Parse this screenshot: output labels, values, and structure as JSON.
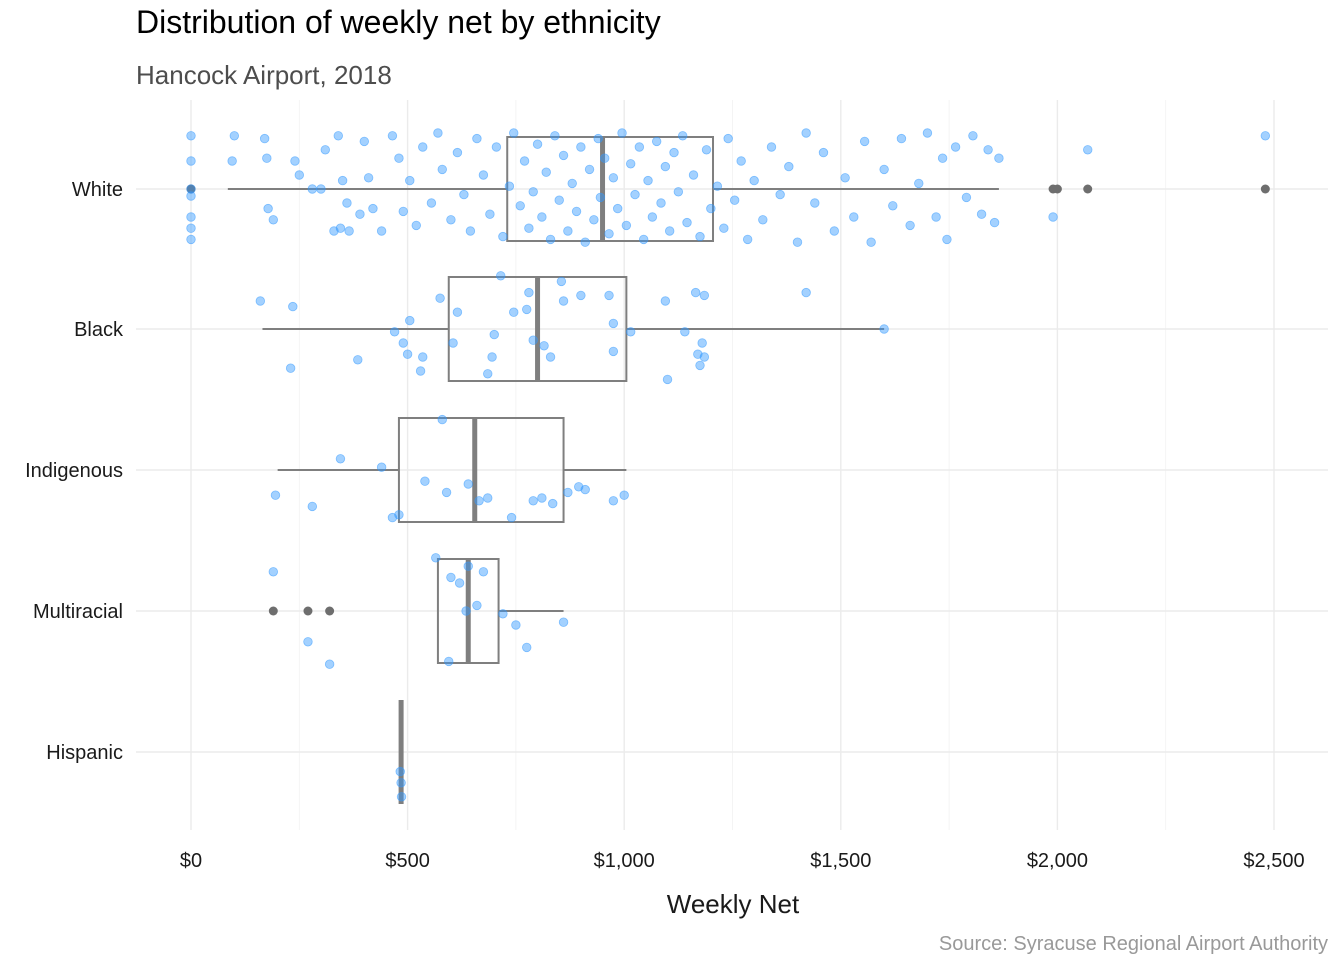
{
  "chart_data": {
    "type": "boxplot",
    "title": "Distribution of weekly net by ethnicity",
    "subtitle": "Hancock Airport, 2018",
    "caption": "Source: Syracuse Regional Airport Authority",
    "xlabel": "Weekly Net",
    "ylabel": "",
    "xlim": [
      -130,
      2600
    ],
    "x_ticks": [
      0,
      500,
      1000,
      1500,
      2000,
      2500
    ],
    "x_tick_labels": [
      "$0",
      "$500",
      "$1,000",
      "$1,500",
      "$2,000",
      "$2,500"
    ],
    "grid": true,
    "orientation": "horizontal",
    "point_color": "#3399ff",
    "box_color": "#7f7f7f",
    "categories": [
      "White",
      "Black",
      "Indigenous",
      "Multiracial",
      "Hispanic"
    ],
    "groups": [
      {
        "name": "White",
        "box": {
          "min": 85,
          "q1": 730,
          "median": 950,
          "q3": 1205,
          "max": 1865
        },
        "outliers": [
          0,
          1990,
          2000,
          2070,
          2480
        ],
        "points": [
          {
            "x": 0,
            "j": -0.38
          },
          {
            "x": 0,
            "j": -0.2
          },
          {
            "x": 0,
            "j": 0
          },
          {
            "x": 0,
            "j": 0.05
          },
          {
            "x": 0,
            "j": 0.2
          },
          {
            "x": 0,
            "j": 0.28
          },
          {
            "x": 0,
            "j": 0.36
          },
          {
            "x": 100,
            "j": -0.38
          },
          {
            "x": 95,
            "j": -0.2
          },
          {
            "x": 170,
            "j": -0.36
          },
          {
            "x": 175,
            "j": -0.22
          },
          {
            "x": 178,
            "j": 0.14
          },
          {
            "x": 190,
            "j": 0.22
          },
          {
            "x": 240,
            "j": -0.2
          },
          {
            "x": 250,
            "j": -0.1
          },
          {
            "x": 280,
            "j": 0
          },
          {
            "x": 300,
            "j": 0
          },
          {
            "x": 310,
            "j": -0.28
          },
          {
            "x": 340,
            "j": -0.38
          },
          {
            "x": 330,
            "j": 0.3
          },
          {
            "x": 345,
            "j": 0.28
          },
          {
            "x": 350,
            "j": -0.06
          },
          {
            "x": 360,
            "j": 0.1
          },
          {
            "x": 365,
            "j": 0.3
          },
          {
            "x": 390,
            "j": 0.18
          },
          {
            "x": 400,
            "j": -0.34
          },
          {
            "x": 410,
            "j": -0.08
          },
          {
            "x": 420,
            "j": 0.14
          },
          {
            "x": 440,
            "j": 0.3
          },
          {
            "x": 465,
            "j": -0.38
          },
          {
            "x": 480,
            "j": -0.22
          },
          {
            "x": 490,
            "j": 0.16
          },
          {
            "x": 505,
            "j": -0.06
          },
          {
            "x": 520,
            "j": 0.26
          },
          {
            "x": 535,
            "j": -0.3
          },
          {
            "x": 555,
            "j": 0.1
          },
          {
            "x": 570,
            "j": -0.4
          },
          {
            "x": 580,
            "j": -0.14
          },
          {
            "x": 600,
            "j": 0.22
          },
          {
            "x": 615,
            "j": -0.26
          },
          {
            "x": 630,
            "j": 0.04
          },
          {
            "x": 645,
            "j": 0.3
          },
          {
            "x": 660,
            "j": -0.36
          },
          {
            "x": 675,
            "j": -0.1
          },
          {
            "x": 690,
            "j": 0.18
          },
          {
            "x": 705,
            "j": -0.3
          },
          {
            "x": 720,
            "j": 0.34
          },
          {
            "x": 735,
            "j": -0.02
          },
          {
            "x": 745,
            "j": -0.4
          },
          {
            "x": 760,
            "j": 0.12
          },
          {
            "x": 770,
            "j": -0.2
          },
          {
            "x": 780,
            "j": 0.28
          },
          {
            "x": 790,
            "j": 0.02
          },
          {
            "x": 800,
            "j": -0.32
          },
          {
            "x": 810,
            "j": 0.2
          },
          {
            "x": 820,
            "j": -0.12
          },
          {
            "x": 830,
            "j": 0.36
          },
          {
            "x": 840,
            "j": -0.38
          },
          {
            "x": 850,
            "j": 0.08
          },
          {
            "x": 860,
            "j": -0.24
          },
          {
            "x": 870,
            "j": 0.3
          },
          {
            "x": 880,
            "j": -0.04
          },
          {
            "x": 890,
            "j": 0.16
          },
          {
            "x": 900,
            "j": -0.3
          },
          {
            "x": 910,
            "j": 0.38
          },
          {
            "x": 920,
            "j": -0.14
          },
          {
            "x": 930,
            "j": 0.22
          },
          {
            "x": 940,
            "j": -0.36
          },
          {
            "x": 945,
            "j": 0.06
          },
          {
            "x": 955,
            "j": -0.22
          },
          {
            "x": 965,
            "j": 0.32
          },
          {
            "x": 975,
            "j": -0.08
          },
          {
            "x": 985,
            "j": 0.14
          },
          {
            "x": 995,
            "j": -0.4
          },
          {
            "x": 1005,
            "j": 0.26
          },
          {
            "x": 1015,
            "j": -0.18
          },
          {
            "x": 1025,
            "j": 0.04
          },
          {
            "x": 1035,
            "j": -0.3
          },
          {
            "x": 1045,
            "j": 0.36
          },
          {
            "x": 1055,
            "j": -0.06
          },
          {
            "x": 1065,
            "j": 0.2
          },
          {
            "x": 1075,
            "j": -0.34
          },
          {
            "x": 1085,
            "j": 0.1
          },
          {
            "x": 1095,
            "j": -0.16
          },
          {
            "x": 1105,
            "j": 0.3
          },
          {
            "x": 1115,
            "j": -0.26
          },
          {
            "x": 1125,
            "j": 0.02
          },
          {
            "x": 1135,
            "j": -0.38
          },
          {
            "x": 1145,
            "j": 0.24
          },
          {
            "x": 1160,
            "j": -0.1
          },
          {
            "x": 1175,
            "j": 0.34
          },
          {
            "x": 1190,
            "j": -0.28
          },
          {
            "x": 1200,
            "j": 0.14
          },
          {
            "x": 1215,
            "j": -0.02
          },
          {
            "x": 1230,
            "j": 0.28
          },
          {
            "x": 1240,
            "j": -0.36
          },
          {
            "x": 1255,
            "j": 0.08
          },
          {
            "x": 1270,
            "j": -0.2
          },
          {
            "x": 1285,
            "j": 0.36
          },
          {
            "x": 1300,
            "j": -0.06
          },
          {
            "x": 1320,
            "j": 0.22
          },
          {
            "x": 1340,
            "j": -0.3
          },
          {
            "x": 1360,
            "j": 0.04
          },
          {
            "x": 1380,
            "j": -0.16
          },
          {
            "x": 1400,
            "j": 0.38
          },
          {
            "x": 1420,
            "j": -0.4
          },
          {
            "x": 1440,
            "j": 0.1
          },
          {
            "x": 1460,
            "j": -0.26
          },
          {
            "x": 1485,
            "j": 0.3
          },
          {
            "x": 1510,
            "j": -0.08
          },
          {
            "x": 1530,
            "j": 0.2
          },
          {
            "x": 1555,
            "j": -0.34
          },
          {
            "x": 1570,
            "j": 0.38
          },
          {
            "x": 1600,
            "j": -0.14
          },
          {
            "x": 1620,
            "j": 0.12
          },
          {
            "x": 1640,
            "j": -0.36
          },
          {
            "x": 1660,
            "j": 0.26
          },
          {
            "x": 1680,
            "j": -0.04
          },
          {
            "x": 1700,
            "j": -0.4
          },
          {
            "x": 1720,
            "j": 0.2
          },
          {
            "x": 1735,
            "j": -0.22
          },
          {
            "x": 1745,
            "j": 0.36
          },
          {
            "x": 1765,
            "j": -0.3
          },
          {
            "x": 1790,
            "j": 0.06
          },
          {
            "x": 1805,
            "j": -0.38
          },
          {
            "x": 1825,
            "j": 0.18
          },
          {
            "x": 1840,
            "j": -0.28
          },
          {
            "x": 1855,
            "j": 0.24
          },
          {
            "x": 1865,
            "j": -0.22
          },
          {
            "x": 2070,
            "j": -0.28
          },
          {
            "x": 1990,
            "j": 0.2
          },
          {
            "x": 2480,
            "j": -0.38
          }
        ]
      },
      {
        "name": "Black",
        "box": {
          "min": 165,
          "q1": 595,
          "median": 800,
          "q3": 1005,
          "max": 1600
        },
        "outliers": [],
        "points": [
          {
            "x": 160,
            "j": -0.2
          },
          {
            "x": 235,
            "j": -0.16
          },
          {
            "x": 230,
            "j": 0.28
          },
          {
            "x": 385,
            "j": 0.22
          },
          {
            "x": 470,
            "j": 0.02
          },
          {
            "x": 490,
            "j": 0.1
          },
          {
            "x": 500,
            "j": 0.18
          },
          {
            "x": 505,
            "j": -0.06
          },
          {
            "x": 535,
            "j": 0.2
          },
          {
            "x": 530,
            "j": 0.3
          },
          {
            "x": 575,
            "j": -0.22
          },
          {
            "x": 605,
            "j": 0.1
          },
          {
            "x": 615,
            "j": -0.12
          },
          {
            "x": 685,
            "j": 0.32
          },
          {
            "x": 695,
            "j": 0.2
          },
          {
            "x": 700,
            "j": 0.04
          },
          {
            "x": 715,
            "j": -0.38
          },
          {
            "x": 745,
            "j": -0.12
          },
          {
            "x": 775,
            "j": -0.14
          },
          {
            "x": 780,
            "j": -0.26
          },
          {
            "x": 790,
            "j": 0.08
          },
          {
            "x": 815,
            "j": 0.12
          },
          {
            "x": 830,
            "j": 0.2
          },
          {
            "x": 855,
            "j": -0.34
          },
          {
            "x": 860,
            "j": -0.2
          },
          {
            "x": 900,
            "j": -0.24
          },
          {
            "x": 965,
            "j": -0.24
          },
          {
            "x": 975,
            "j": 0.16
          },
          {
            "x": 975,
            "j": -0.04
          },
          {
            "x": 1015,
            "j": 0.02
          },
          {
            "x": 1095,
            "j": -0.2
          },
          {
            "x": 1100,
            "j": 0.36
          },
          {
            "x": 1140,
            "j": 0.02
          },
          {
            "x": 1170,
            "j": 0.18
          },
          {
            "x": 1180,
            "j": 0.1
          },
          {
            "x": 1185,
            "j": -0.24
          },
          {
            "x": 1185,
            "j": 0.2
          },
          {
            "x": 1175,
            "j": 0.26
          },
          {
            "x": 1165,
            "j": -0.26
          },
          {
            "x": 1420,
            "j": -0.26
          },
          {
            "x": 1600,
            "j": 0
          }
        ]
      },
      {
        "name": "Indigenous",
        "box": {
          "min": 200,
          "q1": 480,
          "median": 655,
          "q3": 860,
          "max": 1005
        },
        "outliers": [],
        "points": [
          {
            "x": 195,
            "j": 0.18
          },
          {
            "x": 280,
            "j": 0.26
          },
          {
            "x": 345,
            "j": -0.08
          },
          {
            "x": 440,
            "j": -0.02
          },
          {
            "x": 465,
            "j": 0.34
          },
          {
            "x": 480,
            "j": 0.32
          },
          {
            "x": 540,
            "j": 0.08
          },
          {
            "x": 580,
            "j": -0.36
          },
          {
            "x": 590,
            "j": 0.16
          },
          {
            "x": 640,
            "j": 0.1
          },
          {
            "x": 665,
            "j": 0.22
          },
          {
            "x": 685,
            "j": 0.2
          },
          {
            "x": 740,
            "j": 0.34
          },
          {
            "x": 790,
            "j": 0.22
          },
          {
            "x": 810,
            "j": 0.2
          },
          {
            "x": 835,
            "j": 0.24
          },
          {
            "x": 870,
            "j": 0.16
          },
          {
            "x": 895,
            "j": 0.12
          },
          {
            "x": 910,
            "j": 0.14
          },
          {
            "x": 975,
            "j": 0.22
          },
          {
            "x": 1000,
            "j": 0.18
          }
        ]
      },
      {
        "name": "Multiracial",
        "box": {
          "min": 570,
          "q1": 570,
          "median": 640,
          "q3": 710,
          "max": 860
        },
        "outliers": [
          190,
          270,
          320
        ],
        "points": [
          {
            "x": 190,
            "j": -0.28
          },
          {
            "x": 270,
            "j": 0.22
          },
          {
            "x": 320,
            "j": 0.38
          },
          {
            "x": 565,
            "j": -0.38
          },
          {
            "x": 595,
            "j": 0.36
          },
          {
            "x": 600,
            "j": -0.24
          },
          {
            "x": 620,
            "j": -0.2
          },
          {
            "x": 635,
            "j": 0
          },
          {
            "x": 640,
            "j": -0.32
          },
          {
            "x": 660,
            "j": -0.04
          },
          {
            "x": 675,
            "j": -0.28
          },
          {
            "x": 720,
            "j": 0.02
          },
          {
            "x": 750,
            "j": 0.1
          },
          {
            "x": 775,
            "j": 0.26
          },
          {
            "x": 860,
            "j": 0.08
          }
        ]
      },
      {
        "name": "Hispanic",
        "box": {
          "min": 485,
          "q1": 485,
          "median": 485,
          "q3": 485,
          "max": 485
        },
        "outliers": [],
        "points": [
          {
            "x": 483,
            "j": 0.14
          },
          {
            "x": 485,
            "j": 0.22
          },
          {
            "x": 486,
            "j": 0.32
          }
        ]
      }
    ]
  }
}
